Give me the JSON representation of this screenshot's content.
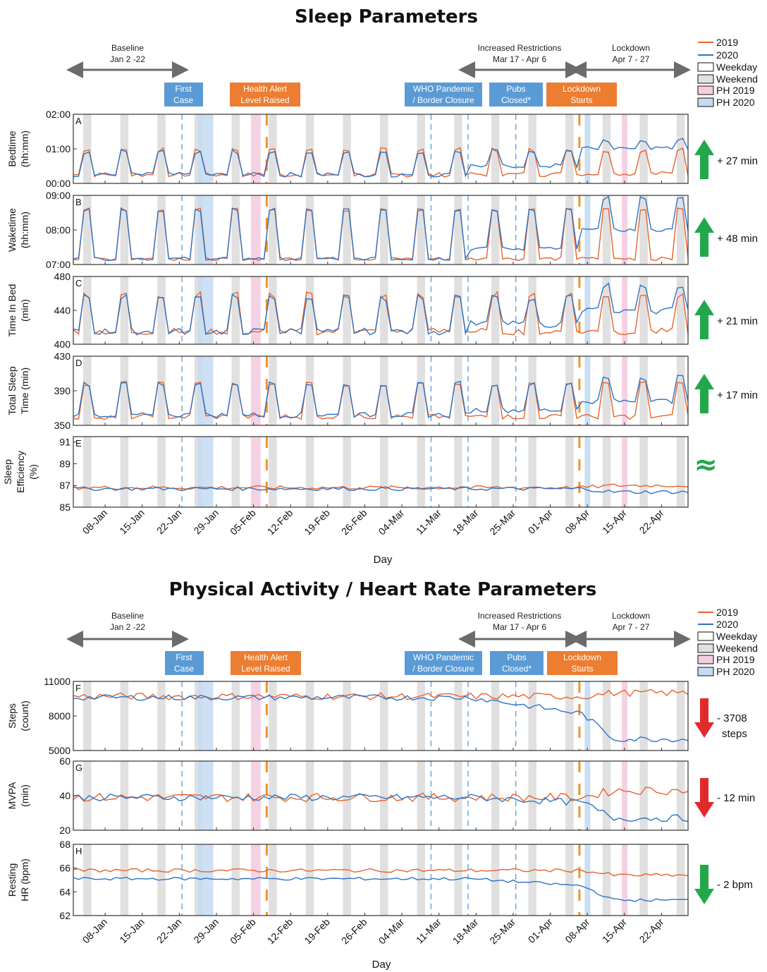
{
  "colors": {
    "y2019": "#e8622c",
    "y2020": "#2f73c4",
    "weekend": "#e0e0e0",
    "ph2019": "#f4cde0",
    "ph2020": "#c5dbf1",
    "event_blue": "#5b9bd5",
    "event_orange": "#ed7d31",
    "arrow_up": "#22a84a",
    "arrow_down": "#e12b2b",
    "period_arrow": "#6b6b6b",
    "lockdown_marker": "#f0932b"
  },
  "legend": {
    "y2019": "2019",
    "y2020": "2020",
    "weekday": "Weekday",
    "weekend": "Weekend",
    "ph2019": "PH 2019",
    "ph2020": "PH 2020"
  },
  "periods": {
    "baseline": {
      "label": "Baseline",
      "dates": "Jan 2 -22"
    },
    "restrictions": {
      "label": "Increased Restrictions",
      "dates": "Mar 17 - Apr 6"
    },
    "lockdown": {
      "label": "Lockdown",
      "dates": "Apr 7 - 27"
    }
  },
  "events": {
    "first_case": {
      "line1": "First",
      "line2": "Case"
    },
    "health_alert": {
      "line1": "Health Alert",
      "line2": "Level Raised"
    },
    "who": {
      "line1": "WHO Pandemic",
      "line2": "/ Border Closure"
    },
    "pubs": {
      "line1": "Pubs",
      "line2": "Closed*"
    },
    "lockdown": {
      "line1": "Lockdown",
      "line2": "Starts"
    }
  },
  "x_ticks": [
    "08-Jan",
    "15-Jan",
    "22-Jan",
    "29-Jan",
    "05-Feb",
    "12-Feb",
    "19-Feb",
    "26-Feb",
    "04-Mar",
    "11-Mar",
    "18-Mar",
    "25-Mar",
    "01-Apr",
    "08-Apr",
    "15-Apr",
    "22-Apr"
  ],
  "x_label": "Day",
  "sections": [
    {
      "title": "Sleep Parameters",
      "panels": [
        {
          "letter": "A",
          "ylabel": [
            "Bedtime",
            "(hh:mm)"
          ],
          "ticks": [
            "02:00",
            "01:00",
            "00:00"
          ],
          "change": "+ 27 min",
          "direction": "up"
        },
        {
          "letter": "B",
          "ylabel": [
            "Waketime",
            "(hh:mm)"
          ],
          "ticks": [
            "09:00",
            "08:00",
            "07:00"
          ],
          "change": "+ 48 min",
          "direction": "up"
        },
        {
          "letter": "C",
          "ylabel": [
            "Time In Bed",
            "(min)"
          ],
          "ticks": [
            "480",
            "440",
            "400"
          ],
          "change": "+ 21 min",
          "direction": "up"
        },
        {
          "letter": "D",
          "ylabel": [
            "Total Sleep",
            "Time (min)"
          ],
          "ticks": [
            "430",
            "390",
            "350"
          ],
          "change": "+ 17 min",
          "direction": "up"
        },
        {
          "letter": "E",
          "ylabel": [
            "Sleep",
            "Efficiency",
            "(%)"
          ],
          "ticks": [
            "91",
            "89",
            "87",
            "85"
          ],
          "change": "≈",
          "direction": "same"
        }
      ]
    },
    {
      "title": "Physical Activity / Heart Rate Parameters",
      "panels": [
        {
          "letter": "F",
          "ylabel": [
            "Steps",
            "(count)"
          ],
          "ticks": [
            "11000",
            "8000",
            "5000"
          ],
          "change": "- 3708",
          "change2": "steps",
          "direction": "down"
        },
        {
          "letter": "G",
          "ylabel": [
            "MVPA",
            "(min)"
          ],
          "ticks": [
            "60",
            "40",
            "20"
          ],
          "change": "- 12 min",
          "direction": "down"
        },
        {
          "letter": "H",
          "ylabel": [
            "Resting",
            "HR (bpm)"
          ],
          "ticks": [
            "68",
            "66",
            "64",
            "62"
          ],
          "change": "- 2 bpm",
          "direction": "down"
        }
      ]
    }
  ],
  "chart_data": [
    {
      "type": "line",
      "x_start": "2020-01-02",
      "x_end": "2020-04-27",
      "panels": [
        {
          "id": "A",
          "ylim_minutes_after_midnight": [
            0,
            120
          ],
          "series": [
            {
              "name": "2019",
              "weekday_level": 15,
              "weekend_peak": 58,
              "lockdown_level": 17
            },
            {
              "name": "2020",
              "weekday_level": 15,
              "weekend_peak": 55,
              "lockdown_level": 60,
              "lockdown_weekend_peak": 75
            }
          ],
          "summary_change": "+ 27 min"
        },
        {
          "id": "B",
          "ylim": [
            "07:00",
            "09:00"
          ],
          "series": [
            {
              "name": "2019",
              "weekday_level": "07:10",
              "weekend_peak": "08:35",
              "lockdown_level": "07:10"
            },
            {
              "name": "2020",
              "weekday_level": "07:10",
              "weekend_peak": "08:35",
              "lockdown_level": "08:00",
              "lockdown_weekend_peak": "08:55"
            }
          ],
          "summary_change": "+ 48 min"
        },
        {
          "id": "C",
          "ylim": [
            400,
            480
          ],
          "series": [
            {
              "name": "2019",
              "weekday_level": 415,
              "weekend_peak": 458,
              "lockdown_level": 415
            },
            {
              "name": "2020",
              "weekday_level": 415,
              "weekend_peak": 455,
              "lockdown_level": 440,
              "lockdown_weekend_peak": 470
            }
          ],
          "summary_change": "+ 21 min"
        },
        {
          "id": "D",
          "ylim": [
            350,
            430
          ],
          "series": [
            {
              "name": "2019",
              "weekday_level": 360,
              "weekend_peak": 398,
              "lockdown_level": 360
            },
            {
              "name": "2020",
              "weekday_level": 362,
              "weekend_peak": 398,
              "lockdown_level": 378,
              "lockdown_weekend_peak": 405
            }
          ],
          "summary_change": "+ 17 min"
        },
        {
          "id": "E",
          "ylim": [
            85,
            91.5
          ],
          "series": [
            {
              "name": "2019",
              "level": 86.8
            },
            {
              "name": "2020",
              "level": 86.7,
              "lockdown_level": 86.4
            }
          ],
          "summary_change": "≈"
        },
        {
          "id": "F",
          "ylim": [
            5000,
            11000
          ],
          "series": [
            {
              "name": "2019",
              "level": 9700,
              "lockdown_level": 10000
            },
            {
              "name": "2020",
              "level": 9600,
              "restrictions_level": 8200,
              "lockdown_level": 6000
            }
          ],
          "summary_change": "- 3708 steps"
        },
        {
          "id": "G",
          "ylim": [
            20,
            60
          ],
          "series": [
            {
              "name": "2019",
              "level": 39,
              "lockdown_level": 43
            },
            {
              "name": "2020",
              "level": 39,
              "restrictions_level": 36,
              "lockdown_level": 27
            }
          ],
          "summary_change": "- 12 min"
        },
        {
          "id": "H",
          "ylim": [
            62,
            68
          ],
          "series": [
            {
              "name": "2019",
              "start": 66.4,
              "level": 65.8,
              "lockdown_level": 65.4
            },
            {
              "name": "2020",
              "start": 65.8,
              "level": 65.0,
              "restrictions_level": 64.5,
              "lockdown_level": 63.3
            }
          ],
          "summary_change": "- 2 bpm"
        }
      ]
    }
  ]
}
